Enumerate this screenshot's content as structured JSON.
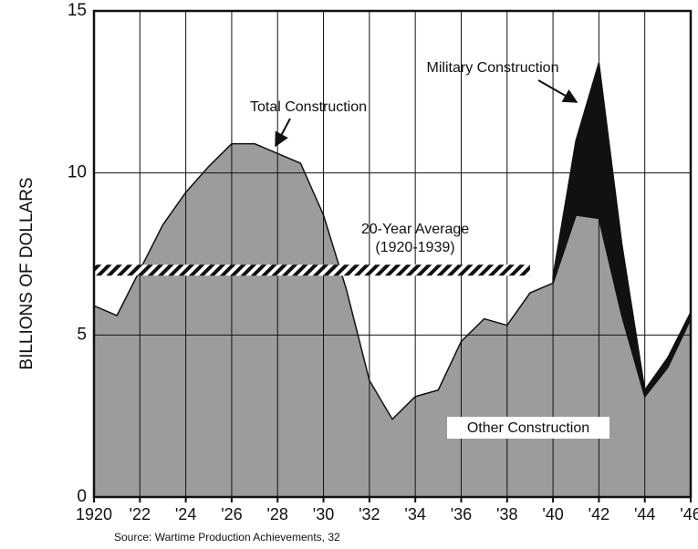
{
  "chart_data": {
    "type": "stacked_area",
    "y_label": "BILLIONS OF DOLLARS",
    "source": "Source: Wartime Production Achievements, 32",
    "annotations": {
      "total": "Total Construction",
      "military": "Military Construction",
      "average": "20-Year Average",
      "average_period": "(1920-1939)",
      "other": "Other Construction"
    },
    "x": [
      1920,
      1921,
      1922,
      1923,
      1924,
      1925,
      1926,
      1927,
      1928,
      1929,
      1930,
      1931,
      1932,
      1933,
      1934,
      1935,
      1936,
      1937,
      1938,
      1939,
      1940,
      1941,
      1942,
      1943,
      1944,
      1945,
      1946
    ],
    "series": [
      {
        "name": "Other Construction",
        "color": "#9c9c9c",
        "values": [
          5.9,
          5.6,
          7.0,
          8.4,
          9.4,
          10.2,
          10.9,
          10.9,
          10.6,
          10.3,
          8.7,
          6.4,
          3.6,
          2.4,
          3.1,
          3.3,
          4.8,
          5.5,
          5.3,
          6.3,
          6.6,
          8.7,
          8.6,
          5.6,
          3.1,
          4.0,
          5.5
        ]
      },
      {
        "name": "Military Construction",
        "color": "#111111",
        "values": [
          null,
          null,
          null,
          null,
          null,
          null,
          null,
          null,
          null,
          null,
          null,
          null,
          null,
          null,
          null,
          null,
          null,
          null,
          null,
          null,
          0.2,
          2.3,
          4.8,
          2.2,
          0.2,
          0.3,
          0.2
        ]
      }
    ],
    "average": {
      "value": 7.0,
      "from": 1920,
      "to": 1939
    },
    "xlim": [
      1920,
      1946
    ],
    "xticks": [
      {
        "value": 1920,
        "label": "1920"
      },
      {
        "value": 1922,
        "label": "'22"
      },
      {
        "value": 1924,
        "label": "'24"
      },
      {
        "value": 1926,
        "label": "'26"
      },
      {
        "value": 1928,
        "label": "'28"
      },
      {
        "value": 1930,
        "label": "'30"
      },
      {
        "value": 1932,
        "label": "'32"
      },
      {
        "value": 1934,
        "label": "'34"
      },
      {
        "value": 1936,
        "label": "'36"
      },
      {
        "value": 1938,
        "label": "'38"
      },
      {
        "value": 1940,
        "label": "'40"
      },
      {
        "value": 1942,
        "label": "'42"
      },
      {
        "value": 1944,
        "label": "'44"
      },
      {
        "value": 1946,
        "label": "'46"
      }
    ],
    "ylim": [
      0,
      15
    ],
    "yticks": [
      0,
      5,
      10,
      15
    ],
    "grid": true
  }
}
